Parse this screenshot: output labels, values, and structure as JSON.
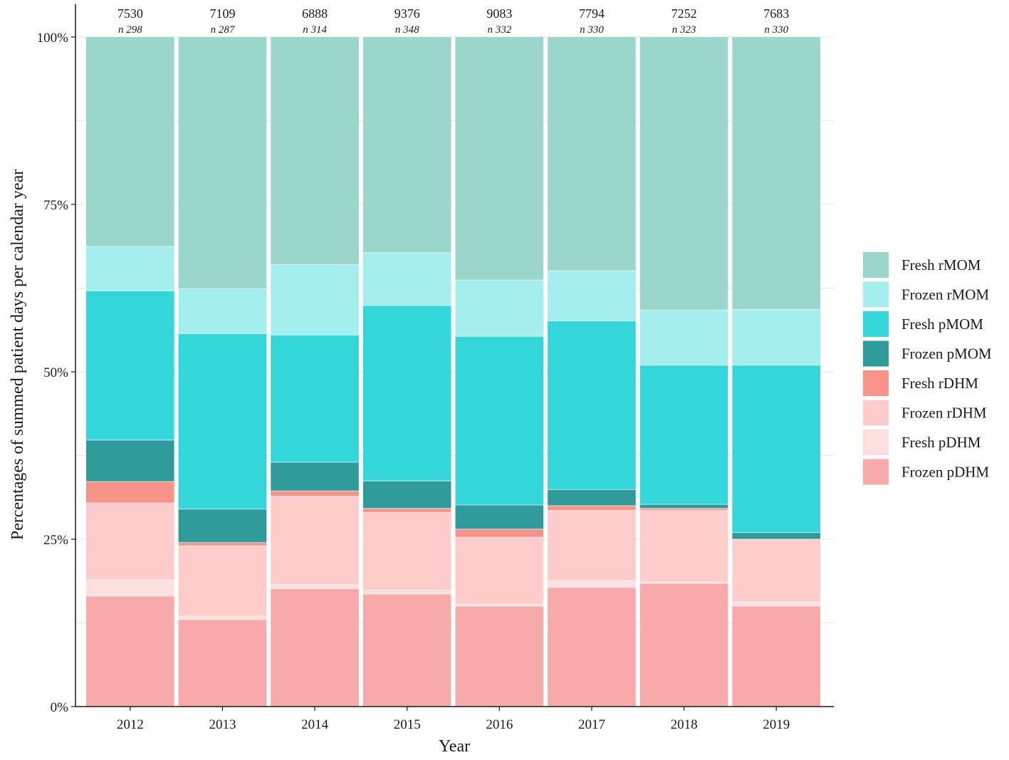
{
  "chart_data": {
    "type": "bar",
    "stacked": true,
    "normalized": true,
    "title": "",
    "xlabel": "Year",
    "ylabel": "Percentages of summed patient days per calendar year",
    "ylim": [
      0,
      100
    ],
    "yticks": [
      0,
      25,
      50,
      75,
      100
    ],
    "ytick_labels": [
      "0%",
      "25%",
      "50%",
      "75%",
      "100%"
    ],
    "grid": true,
    "legend_position": "right",
    "categories": [
      "2012",
      "2013",
      "2014",
      "2015",
      "2016",
      "2017",
      "2018",
      "2019"
    ],
    "top_labels": {
      "totals": [
        "7530",
        "7109",
        "6888",
        "9376",
        "9083",
        "7794",
        "7252",
        "7683"
      ],
      "n": [
        "n 298",
        "n 287",
        "n 314",
        "n 348",
        "n 332",
        "n 330",
        "n 323",
        "n 330"
      ]
    },
    "series": [
      {
        "name": "Frozen pDHM",
        "color": "#f8aaaa",
        "values": [
          16.5,
          13.0,
          17.6,
          16.8,
          15.0,
          17.8,
          18.4,
          15.0
        ]
      },
      {
        "name": "Fresh pDHM",
        "color": "#fce0e0",
        "values": [
          2.4,
          0.5,
          0.6,
          0.6,
          0.3,
          1.0,
          0.2,
          0.6
        ]
      },
      {
        "name": "Frozen rDHM",
        "color": "#fdcccb",
        "values": [
          11.5,
          10.5,
          13.2,
          11.6,
          10.0,
          10.5,
          10.7,
          9.4
        ]
      },
      {
        "name": "Fresh rDHM",
        "color": "#f8938a",
        "values": [
          3.2,
          0.5,
          0.8,
          0.6,
          1.2,
          0.7,
          0.3,
          0.0
        ]
      },
      {
        "name": "Frozen pMOM",
        "color": "#2e9a9a",
        "values": [
          6.2,
          5.0,
          4.3,
          4.1,
          3.6,
          2.4,
          0.6,
          1.0
        ]
      },
      {
        "name": "Fresh pMOM",
        "color": "#33d6d9",
        "values": [
          22.3,
          26.2,
          19.0,
          26.2,
          25.2,
          25.2,
          20.8,
          25.0
        ]
      },
      {
        "name": "Frozen rMOM",
        "color": "#a5eeee",
        "values": [
          6.6,
          6.7,
          10.5,
          7.9,
          8.4,
          7.5,
          8.2,
          8.3
        ]
      },
      {
        "name": "Fresh rMOM",
        "color": "#9bd6cb",
        "values": [
          31.3,
          37.6,
          34.0,
          32.2,
          36.3,
          34.9,
          40.8,
          40.7
        ]
      }
    ],
    "legend_order": [
      "Fresh rMOM",
      "Frozen rMOM",
      "Fresh pMOM",
      "Frozen pMOM",
      "Fresh rDHM",
      "Frozen rDHM",
      "Fresh pDHM",
      "Frozen pDHM"
    ]
  }
}
